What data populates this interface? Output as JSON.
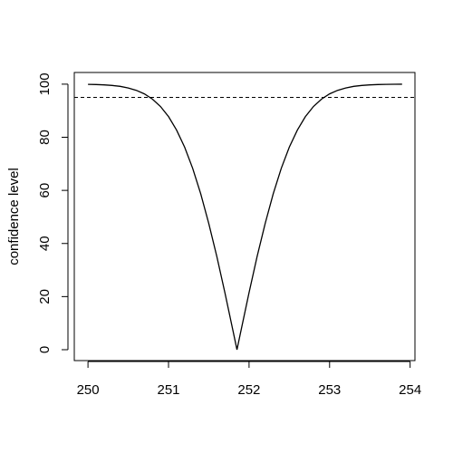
{
  "chart_data": {
    "type": "line",
    "y_label": "confidence level",
    "x": [
      250,
      250.1,
      250.2,
      250.3,
      250.4,
      250.5,
      250.6,
      250.7,
      250.8,
      250.9,
      251,
      251.1,
      251.2,
      251.3,
      251.4,
      251.5,
      251.6,
      251.7,
      251.8,
      251.85,
      251.9,
      252,
      252.1,
      252.2,
      252.3,
      252.4,
      252.5,
      252.6,
      252.7,
      252.8,
      252.9,
      253,
      253.1,
      253.2,
      253.3,
      253.4,
      253.5,
      253.6,
      253.7,
      253.8,
      253.9
    ],
    "values": [
      99.92,
      99.85,
      99.73,
      99.52,
      99.17,
      98.57,
      97.68,
      96.34,
      94.39,
      91.6,
      87.8,
      82.7,
      76.3,
      68.3,
      58.7,
      47.5,
      35.1,
      21.5,
      7.2,
      0,
      7.2,
      21.5,
      35.1,
      47.5,
      58.7,
      68.3,
      76.3,
      82.7,
      87.8,
      91.6,
      94.39,
      96.34,
      97.68,
      98.57,
      99.17,
      99.52,
      99.73,
      99.85,
      99.92,
      99.96,
      99.98
    ],
    "color": "#000000",
    "hline": 95,
    "xlim": [
      249.83,
      254.06
    ],
    "ylim": [
      -4.1,
      104.4
    ],
    "xticks": [
      250,
      251,
      252,
      253,
      254
    ],
    "yticks": [
      0,
      20,
      40,
      60,
      80,
      100
    ]
  }
}
